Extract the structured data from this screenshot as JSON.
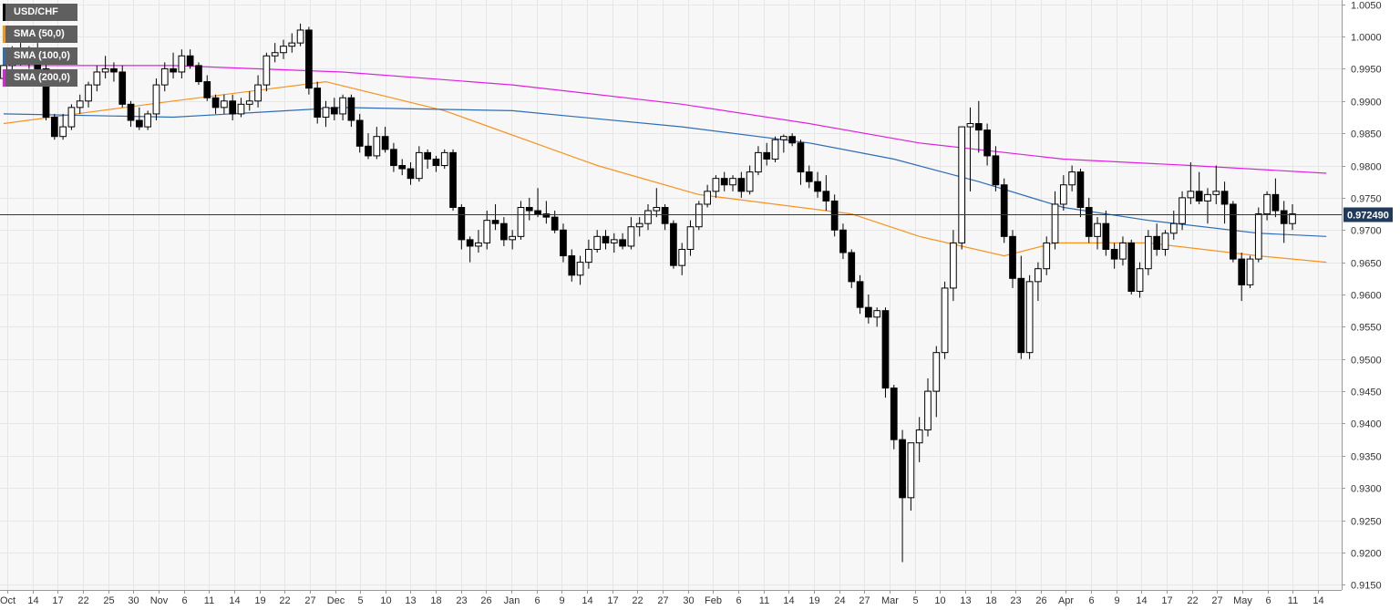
{
  "chart_data": {
    "type": "candlestick",
    "symbol": "USD/CHF",
    "timeframe": "daily",
    "ylim": [
      0.915,
      1.005
    ],
    "y_ticks": [
      "1.0050",
      "1.0000",
      "0.9950",
      "0.9900",
      "0.9850",
      "0.9800",
      "0.9750",
      "0.9700",
      "0.9650",
      "0.9600",
      "0.9550",
      "0.9500",
      "0.9450",
      "0.9400",
      "0.9350",
      "0.9300",
      "0.9250",
      "0.9200",
      "0.9150"
    ],
    "x_ticks": [
      "Oct",
      "14",
      "17",
      "22",
      "25",
      "30",
      "Nov",
      "6",
      "11",
      "14",
      "19",
      "22",
      "27",
      "Dec",
      "5",
      "10",
      "13",
      "18",
      "23",
      "26",
      "Jan",
      "6",
      "9",
      "14",
      "17",
      "22",
      "27",
      "30",
      "Feb",
      "6",
      "11",
      "14",
      "19",
      "24",
      "27",
      "Mar",
      "5",
      "10",
      "13",
      "18",
      "23",
      "26",
      "Apr",
      "6",
      "9",
      "14",
      "17",
      "22",
      "27",
      "May",
      "6",
      "11",
      "14"
    ],
    "last_price": 0.97249,
    "last_price_label": "0.972490",
    "legend": [
      {
        "label": "USD/CHF",
        "color": "#000000"
      },
      {
        "label": "SMA (50,0)",
        "color": "#f7931e"
      },
      {
        "label": "SMA (100,0)",
        "color": "#2e6db4"
      },
      {
        "label": "SMA (200,0)",
        "color": "#e020e0"
      }
    ],
    "colors": {
      "up": "#ffffff",
      "down": "#000000",
      "grid": "#e6e6e6",
      "last_price_line": "#1f3a5c",
      "tag_bg": "#1f3a5c"
    },
    "candles": [
      [
        0.9935,
        0.9965,
        0.9925,
        0.9955
      ],
      [
        0.9955,
        0.9985,
        0.994,
        0.9975
      ],
      [
        0.9975,
        0.999,
        0.9955,
        0.996
      ],
      [
        0.996,
        0.9985,
        0.995,
        0.998
      ],
      [
        0.998,
        0.999,
        0.9945,
        0.995
      ],
      [
        0.995,
        0.996,
        0.987,
        0.9875
      ],
      [
        0.9875,
        0.988,
        0.984,
        0.9845
      ],
      [
        0.9845,
        0.988,
        0.984,
        0.986
      ],
      [
        0.986,
        0.9895,
        0.9855,
        0.989
      ],
      [
        0.989,
        0.991,
        0.988,
        0.99
      ],
      [
        0.99,
        0.993,
        0.989,
        0.9925
      ],
      [
        0.9925,
        0.9955,
        0.9915,
        0.9945
      ],
      [
        0.9945,
        0.997,
        0.9935,
        0.995
      ],
      [
        0.995,
        0.996,
        0.993,
        0.9945
      ],
      [
        0.9945,
        0.9955,
        0.989,
        0.9895
      ],
      [
        0.9895,
        0.99,
        0.986,
        0.987
      ],
      [
        0.987,
        0.989,
        0.9855,
        0.986
      ],
      [
        0.986,
        0.9885,
        0.9855,
        0.988
      ],
      [
        0.988,
        0.9935,
        0.987,
        0.9925
      ],
      [
        0.9925,
        0.996,
        0.9915,
        0.995
      ],
      [
        0.995,
        0.9975,
        0.9935,
        0.9945
      ],
      [
        0.9945,
        0.998,
        0.9935,
        0.997
      ],
      [
        0.997,
        0.998,
        0.995,
        0.9955
      ],
      [
        0.9955,
        0.996,
        0.9925,
        0.993
      ],
      [
        0.993,
        0.994,
        0.99,
        0.9905
      ],
      [
        0.9905,
        0.991,
        0.988,
        0.989
      ],
      [
        0.989,
        0.991,
        0.988,
        0.99
      ],
      [
        0.99,
        0.991,
        0.987,
        0.988
      ],
      [
        0.988,
        0.9905,
        0.9875,
        0.9895
      ],
      [
        0.9895,
        0.9915,
        0.9885,
        0.99
      ],
      [
        0.99,
        0.994,
        0.989,
        0.9925
      ],
      [
        0.9925,
        0.9975,
        0.9915,
        0.997
      ],
      [
        0.997,
        0.999,
        0.996,
        0.9975
      ],
      [
        0.9975,
        0.9995,
        0.9965,
        0.9985
      ],
      [
        0.9985,
        1.0005,
        0.9975,
        0.999
      ],
      [
        0.999,
        1.002,
        0.9985,
        1.001
      ],
      [
        1.001,
        1.0015,
        0.991,
        0.992
      ],
      [
        0.992,
        0.993,
        0.9865,
        0.9875
      ],
      [
        0.9875,
        0.99,
        0.986,
        0.989
      ],
      [
        0.989,
        0.9905,
        0.987,
        0.988
      ],
      [
        0.988,
        0.991,
        0.987,
        0.9905
      ],
      [
        0.9905,
        0.991,
        0.986,
        0.987
      ],
      [
        0.987,
        0.988,
        0.982,
        0.983
      ],
      [
        0.983,
        0.985,
        0.981,
        0.9815
      ],
      [
        0.9815,
        0.986,
        0.981,
        0.9845
      ],
      [
        0.9845,
        0.986,
        0.982,
        0.9825
      ],
      [
        0.9825,
        0.9835,
        0.979,
        0.98
      ],
      [
        0.98,
        0.981,
        0.9785,
        0.9795
      ],
      [
        0.9795,
        0.9805,
        0.977,
        0.978
      ],
      [
        0.978,
        0.983,
        0.9775,
        0.982
      ],
      [
        0.982,
        0.9825,
        0.9795,
        0.981
      ],
      [
        0.981,
        0.9815,
        0.979,
        0.98
      ],
      [
        0.98,
        0.9825,
        0.9795,
        0.982
      ],
      [
        0.982,
        0.9825,
        0.973,
        0.9735
      ],
      [
        0.9735,
        0.974,
        0.967,
        0.9685
      ],
      [
        0.9685,
        0.969,
        0.965,
        0.9675
      ],
      [
        0.9675,
        0.97,
        0.9665,
        0.968
      ],
      [
        0.968,
        0.973,
        0.967,
        0.9715
      ],
      [
        0.9715,
        0.974,
        0.97,
        0.971
      ],
      [
        0.971,
        0.972,
        0.9675,
        0.9685
      ],
      [
        0.9685,
        0.97,
        0.967,
        0.969
      ],
      [
        0.969,
        0.9745,
        0.9685,
        0.9735
      ],
      [
        0.9735,
        0.975,
        0.9715,
        0.973
      ],
      [
        0.973,
        0.9765,
        0.972,
        0.9725
      ],
      [
        0.9725,
        0.9745,
        0.971,
        0.972
      ],
      [
        0.972,
        0.973,
        0.9695,
        0.97
      ],
      [
        0.97,
        0.971,
        0.965,
        0.966
      ],
      [
        0.966,
        0.967,
        0.962,
        0.963
      ],
      [
        0.963,
        0.966,
        0.9615,
        0.965
      ],
      [
        0.965,
        0.9685,
        0.964,
        0.967
      ],
      [
        0.967,
        0.97,
        0.9665,
        0.969
      ],
      [
        0.969,
        0.97,
        0.967,
        0.968
      ],
      [
        0.968,
        0.9695,
        0.9665,
        0.9685
      ],
      [
        0.9685,
        0.9695,
        0.967,
        0.9675
      ],
      [
        0.9675,
        0.972,
        0.967,
        0.9705
      ],
      [
        0.9705,
        0.972,
        0.969,
        0.971
      ],
      [
        0.971,
        0.974,
        0.97,
        0.973
      ],
      [
        0.973,
        0.9765,
        0.972,
        0.9735
      ],
      [
        0.9735,
        0.974,
        0.97,
        0.971
      ],
      [
        0.971,
        0.9715,
        0.964,
        0.9645
      ],
      [
        0.9645,
        0.968,
        0.963,
        0.967
      ],
      [
        0.967,
        0.9715,
        0.966,
        0.9705
      ],
      [
        0.9705,
        0.9745,
        0.97,
        0.974
      ],
      [
        0.974,
        0.977,
        0.9735,
        0.976
      ],
      [
        0.976,
        0.9785,
        0.975,
        0.978
      ],
      [
        0.978,
        0.979,
        0.976,
        0.977
      ],
      [
        0.977,
        0.9785,
        0.976,
        0.978
      ],
      [
        0.978,
        0.979,
        0.975,
        0.976
      ],
      [
        0.976,
        0.98,
        0.9755,
        0.979
      ],
      [
        0.979,
        0.983,
        0.9785,
        0.982
      ],
      [
        0.982,
        0.9835,
        0.98,
        0.981
      ],
      [
        0.981,
        0.9845,
        0.9805,
        0.984
      ],
      [
        0.984,
        0.9848,
        0.982,
        0.9845
      ],
      [
        0.9845,
        0.985,
        0.983,
        0.9835
      ],
      [
        0.9835,
        0.984,
        0.977,
        0.979
      ],
      [
        0.979,
        0.98,
        0.9765,
        0.9775
      ],
      [
        0.9775,
        0.979,
        0.975,
        0.976
      ],
      [
        0.976,
        0.9785,
        0.973,
        0.9745
      ],
      [
        0.9745,
        0.9755,
        0.969,
        0.97
      ],
      [
        0.97,
        0.971,
        0.9655,
        0.9665
      ],
      [
        0.9665,
        0.967,
        0.961,
        0.962
      ],
      [
        0.962,
        0.963,
        0.957,
        0.958
      ],
      [
        0.958,
        0.96,
        0.9555,
        0.9565
      ],
      [
        0.9565,
        0.958,
        0.955,
        0.9575
      ],
      [
        0.9575,
        0.958,
        0.944,
        0.9455
      ],
      [
        0.9455,
        0.946,
        0.936,
        0.9375
      ],
      [
        0.9375,
        0.939,
        0.9185,
        0.9285
      ],
      [
        0.9285,
        0.937,
        0.9265,
        0.937
      ],
      [
        0.937,
        0.941,
        0.934,
        0.939
      ],
      [
        0.939,
        0.947,
        0.938,
        0.945
      ],
      [
        0.945,
        0.952,
        0.941,
        0.951
      ],
      [
        0.951,
        0.962,
        0.95,
        0.961
      ],
      [
        0.961,
        0.97,
        0.959,
        0.968
      ],
      [
        0.968,
        0.986,
        0.967,
        0.986
      ],
      [
        0.986,
        0.989,
        0.976,
        0.9865
      ],
      [
        0.9865,
        0.99,
        0.982,
        0.9855
      ],
      [
        0.9855,
        0.9865,
        0.98,
        0.9815
      ],
      [
        0.9815,
        0.983,
        0.976,
        0.977
      ],
      [
        0.977,
        0.978,
        0.968,
        0.969
      ],
      [
        0.969,
        0.97,
        0.961,
        0.9625
      ],
      [
        0.9625,
        0.966,
        0.95,
        0.951
      ],
      [
        0.951,
        0.963,
        0.95,
        0.962
      ],
      [
        0.962,
        0.965,
        0.959,
        0.964
      ],
      [
        0.964,
        0.969,
        0.963,
        0.968
      ],
      [
        0.968,
        0.976,
        0.967,
        0.974
      ],
      [
        0.974,
        0.9785,
        0.973,
        0.977
      ],
      [
        0.977,
        0.98,
        0.976,
        0.979
      ],
      [
        0.979,
        0.9795,
        0.972,
        0.9735
      ],
      [
        0.9735,
        0.975,
        0.968,
        0.969
      ],
      [
        0.969,
        0.972,
        0.967,
        0.971
      ],
      [
        0.971,
        0.973,
        0.966,
        0.967
      ],
      [
        0.967,
        0.968,
        0.964,
        0.9655
      ],
      [
        0.9655,
        0.969,
        0.9645,
        0.968
      ],
      [
        0.968,
        0.9685,
        0.96,
        0.9605
      ],
      [
        0.9605,
        0.965,
        0.9595,
        0.964
      ],
      [
        0.964,
        0.97,
        0.963,
        0.969
      ],
      [
        0.969,
        0.971,
        0.966,
        0.967
      ],
      [
        0.967,
        0.97,
        0.966,
        0.9695
      ],
      [
        0.9695,
        0.973,
        0.9685,
        0.971
      ],
      [
        0.971,
        0.976,
        0.97,
        0.975
      ],
      [
        0.975,
        0.9805,
        0.974,
        0.976
      ],
      [
        0.976,
        0.979,
        0.974,
        0.9745
      ],
      [
        0.9745,
        0.9765,
        0.971,
        0.9755
      ],
      [
        0.9755,
        0.98,
        0.974,
        0.976
      ],
      [
        0.976,
        0.9775,
        0.971,
        0.974
      ],
      [
        0.974,
        0.9745,
        0.965,
        0.9655
      ],
      [
        0.9655,
        0.9665,
        0.959,
        0.9615
      ],
      [
        0.9615,
        0.966,
        0.961,
        0.9655
      ],
      [
        0.9655,
        0.9735,
        0.965,
        0.9725
      ],
      [
        0.9725,
        0.976,
        0.9715,
        0.9755
      ],
      [
        0.9755,
        0.978,
        0.972,
        0.973
      ],
      [
        0.973,
        0.9745,
        0.968,
        0.971
      ],
      [
        0.971,
        0.974,
        0.97,
        0.9725
      ]
    ],
    "series": [
      {
        "name": "SMA (50,0)",
        "color": "#f7931e",
        "points": [
          [
            0,
            0.9865
          ],
          [
            20,
            0.99
          ],
          [
            38,
            0.993
          ],
          [
            52,
            0.9885
          ],
          [
            70,
            0.98
          ],
          [
            82,
            0.9755
          ],
          [
            100,
            0.9725
          ],
          [
            108,
            0.969
          ],
          [
            118,
            0.966
          ],
          [
            124,
            0.968
          ],
          [
            135,
            0.968
          ],
          [
            148,
            0.966
          ],
          [
            156,
            0.965
          ]
        ]
      },
      {
        "name": "SMA (100,0)",
        "color": "#2e6db4",
        "points": [
          [
            0,
            0.988
          ],
          [
            20,
            0.9875
          ],
          [
            40,
            0.989
          ],
          [
            60,
            0.9885
          ],
          [
            80,
            0.986
          ],
          [
            95,
            0.9835
          ],
          [
            105,
            0.981
          ],
          [
            115,
            0.9775
          ],
          [
            125,
            0.9735
          ],
          [
            135,
            0.9715
          ],
          [
            148,
            0.9695
          ],
          [
            156,
            0.969
          ]
        ]
      },
      {
        "name": "SMA (200,0)",
        "color": "#e020e0",
        "points": [
          [
            0,
            0.9955
          ],
          [
            20,
            0.9955
          ],
          [
            40,
            0.9945
          ],
          [
            60,
            0.9925
          ],
          [
            80,
            0.9895
          ],
          [
            95,
            0.9865
          ],
          [
            108,
            0.9835
          ],
          [
            125,
            0.981
          ],
          [
            140,
            0.98
          ],
          [
            156,
            0.9788
          ]
        ]
      }
    ]
  }
}
